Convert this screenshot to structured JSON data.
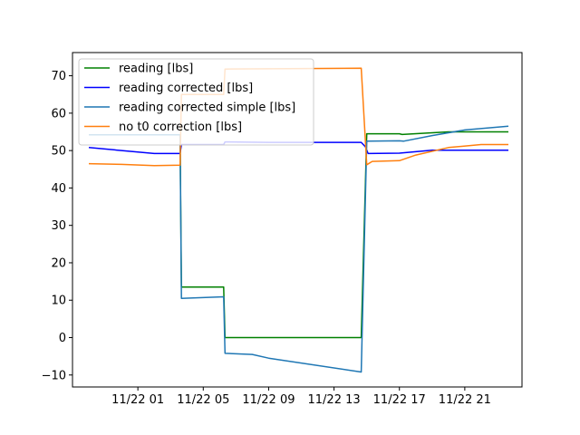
{
  "chart_data": {
    "type": "line",
    "title": "",
    "xlabel": "",
    "ylabel": "",
    "x_type": "datetime",
    "xlim": [
      "2023-11-21 21:00",
      "2023-11-23 00:30"
    ],
    "ylim": [
      -13.2,
      76.2
    ],
    "x_ticks": [
      {
        "x": "2023-11-22 01:00",
        "label": "11/22 01"
      },
      {
        "x": "2023-11-22 05:00",
        "label": "11/22 05"
      },
      {
        "x": "2023-11-22 09:00",
        "label": "11/22 09"
      },
      {
        "x": "2023-11-22 13:00",
        "label": "11/22 13"
      },
      {
        "x": "2023-11-22 17:00",
        "label": "11/22 17"
      },
      {
        "x": "2023-11-22 21:00",
        "label": "11/22 21"
      }
    ],
    "y_ticks": [
      -10,
      0,
      10,
      20,
      30,
      40,
      50,
      60,
      70
    ],
    "grid": false,
    "legend_position": "top-left",
    "series": [
      {
        "name": "reading [lbs]",
        "color": "#008000",
        "points": [
          [
            "2023-11-21 22:00",
            54.2
          ],
          [
            "2023-11-22 03:35",
            54.2
          ],
          [
            "2023-11-22 03:40",
            13.5
          ],
          [
            "2023-11-22 06:15",
            13.5
          ],
          [
            "2023-11-22 06:20",
            0.0
          ],
          [
            "2023-11-22 14:40",
            0.0
          ],
          [
            "2023-11-22 15:00",
            54.5
          ],
          [
            "2023-11-22 17:00",
            54.5
          ],
          [
            "2023-11-22 17:10",
            54.3
          ],
          [
            "2023-11-22 20:00",
            55.0
          ],
          [
            "2023-11-22 23:40",
            55.0
          ]
        ]
      },
      {
        "name": "reading corrected [lbs]",
        "color": "#0000ff",
        "points": [
          [
            "2023-11-21 22:00",
            50.8
          ],
          [
            "2023-11-22 00:00",
            50.0
          ],
          [
            "2023-11-22 02:00",
            49.2
          ],
          [
            "2023-11-22 03:35",
            49.2
          ],
          [
            "2023-11-22 03:40",
            51.6
          ],
          [
            "2023-11-22 06:15",
            51.6
          ],
          [
            "2023-11-22 06:20",
            52.3
          ],
          [
            "2023-11-22 09:00",
            52.2
          ],
          [
            "2023-11-22 14:40",
            52.2
          ],
          [
            "2023-11-22 14:55",
            51.0
          ],
          [
            "2023-11-22 15:05",
            49.2
          ],
          [
            "2023-11-22 17:00",
            49.3
          ],
          [
            "2023-11-22 19:00",
            50.1
          ],
          [
            "2023-11-22 23:40",
            50.1
          ]
        ]
      },
      {
        "name": "reading corrected simple [lbs]",
        "color": "#1f77b4",
        "points": [
          [
            "2023-11-21 22:00",
            54.2
          ],
          [
            "2023-11-22 03:35",
            54.2
          ],
          [
            "2023-11-22 03:40",
            10.5
          ],
          [
            "2023-11-22 06:15",
            10.9
          ],
          [
            "2023-11-22 06:20",
            -4.2
          ],
          [
            "2023-11-22 08:00",
            -4.5
          ],
          [
            "2023-11-22 09:00",
            -5.5
          ],
          [
            "2023-11-22 14:40",
            -9.2
          ],
          [
            "2023-11-22 15:00",
            52.5
          ],
          [
            "2023-11-22 17:00",
            52.6
          ],
          [
            "2023-11-22 17:15",
            52.5
          ],
          [
            "2023-11-22 19:00",
            54.0
          ],
          [
            "2023-11-22 21:00",
            55.5
          ],
          [
            "2023-11-22 23:40",
            56.5
          ]
        ]
      },
      {
        "name": "no t0 correction [lbs]",
        "color": "#ff7f0e",
        "points": [
          [
            "2023-11-21 22:00",
            46.5
          ],
          [
            "2023-11-22 00:00",
            46.3
          ],
          [
            "2023-11-22 02:00",
            46.0
          ],
          [
            "2023-11-22 03:35",
            46.1
          ],
          [
            "2023-11-22 03:40",
            65.0
          ],
          [
            "2023-11-22 06:15",
            65.0
          ],
          [
            "2023-11-22 06:20",
            71.8
          ],
          [
            "2023-11-22 14:40",
            72.0
          ],
          [
            "2023-11-22 15:00",
            46.2
          ],
          [
            "2023-11-22 15:20",
            47.1
          ],
          [
            "2023-11-22 17:00",
            47.3
          ],
          [
            "2023-11-22 18:00",
            48.8
          ],
          [
            "2023-11-22 20:00",
            50.8
          ],
          [
            "2023-11-22 22:00",
            51.6
          ],
          [
            "2023-11-22 23:40",
            51.6
          ]
        ]
      }
    ]
  }
}
